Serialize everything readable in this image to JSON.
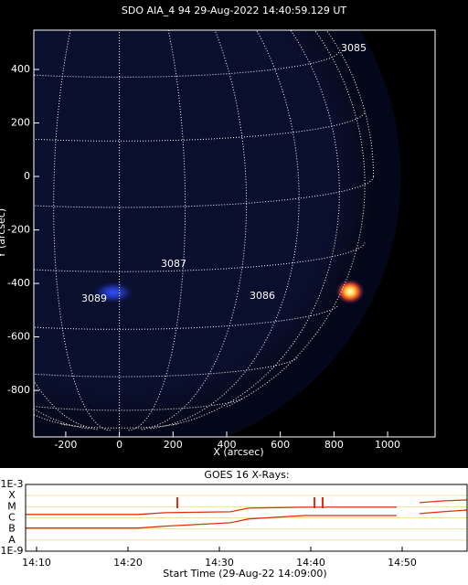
{
  "chart_data": [
    {
      "type": "image",
      "title": "SDO AIA_4 94 29-Aug-2022 14:40:59.129 UT",
      "xlabel": "X (arcsec)",
      "ylabel": "Y (arcsec)",
      "xlim": [
        -319,
        1177
      ],
      "ylim": [
        -974,
        547
      ],
      "xticks": [
        -200,
        0,
        200,
        400,
        600,
        800,
        1000
      ],
      "yticks": [
        -800,
        -600,
        -400,
        -200,
        0,
        200,
        400
      ],
      "annotations": [
        "3085",
        "3087",
        "3089",
        "3086"
      ]
    },
    {
      "type": "line",
      "title": "GOES 16 X-Rays:",
      "xlabel": "Start Time (29-Aug-22 14:09:00)",
      "log_y": true,
      "grid": true,
      "xlim": [
        8.8,
        57.1
      ],
      "ylim": [
        1e-09,
        0.001
      ],
      "xticks": [
        {
          "value": 10,
          "label": "14:10"
        },
        {
          "value": 20,
          "label": "14:20"
        },
        {
          "value": 30,
          "label": "14:30"
        },
        {
          "value": 40,
          "label": "14:40"
        },
        {
          "value": 50,
          "label": "14:50"
        }
      ],
      "yticks": [
        {
          "value": 0.001,
          "label": "1E-3"
        },
        {
          "value": 0.0001,
          "label": "X"
        },
        {
          "value": 1e-05,
          "label": "M"
        },
        {
          "value": 1e-06,
          "label": "C"
        },
        {
          "value": 1e-07,
          "label": "B"
        },
        {
          "value": 1e-08,
          "label": "A"
        },
        {
          "value": 1e-09,
          "label": "1E-9"
        }
      ],
      "x": [
        8.8,
        21.1,
        24.1,
        31.2,
        33.2,
        39.3,
        49.4,
        50.0,
        51.9,
        54.4,
        57.1
      ],
      "series": [
        {
          "color": "#e03010",
          "values": [
            2e-06,
            2e-06,
            2.9e-06,
            3.5e-06,
            7.4e-06,
            8.9e-06,
            8.9e-06,
            null,
            2.3e-05,
            3.3e-05,
            4.1e-05
          ]
        },
        {
          "color": "#e03010",
          "values": [
            1.2e-07,
            1.2e-07,
            1.8e-07,
            3.6e-07,
            8e-07,
            1.6e-06,
            1.6e-06,
            null,
            2.4e-06,
            3.5e-06,
            5e-06
          ]
        }
      ],
      "event_times": [
        25.4,
        40.4,
        41.3
      ],
      "event_color": "#e03010"
    }
  ]
}
